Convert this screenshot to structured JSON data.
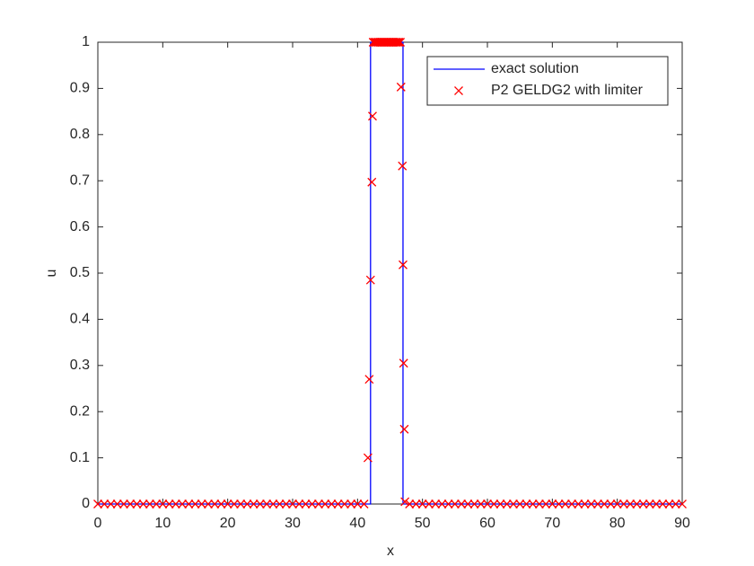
{
  "chart_data": {
    "type": "line",
    "xlabel": "x",
    "ylabel": "u",
    "xlim": [
      0,
      90
    ],
    "xticks": [
      0,
      10,
      20,
      30,
      40,
      50,
      60,
      70,
      80,
      90
    ],
    "ylim": [
      0,
      1
    ],
    "yticks": [
      0,
      0.1,
      0.2,
      0.3,
      0.4,
      0.5,
      0.6,
      0.7,
      0.8,
      0.9,
      1
    ],
    "legend": "upper right",
    "series": [
      {
        "name": "exact solution",
        "color": "#0000ff",
        "style": "line",
        "x": [
          0,
          42,
          42,
          47,
          47,
          90
        ],
        "values": [
          0,
          0,
          1,
          1,
          0,
          0
        ]
      },
      {
        "name": "P2 GELDG2 with limiter",
        "color": "#ff0000",
        "style": "marker",
        "x": [
          0,
          1,
          2,
          3,
          4,
          5,
          6,
          7,
          8,
          9,
          10,
          11,
          12,
          13,
          14,
          15,
          16,
          17,
          18,
          19,
          20,
          21,
          22,
          23,
          24,
          25,
          26,
          27,
          28,
          29,
          30,
          31,
          32,
          33,
          34,
          35,
          36,
          37,
          38,
          39,
          40,
          41,
          41.6,
          41.8,
          42.0,
          42.2,
          42.3,
          42.4,
          42.6,
          42.8,
          43,
          43.2,
          43.4,
          43.6,
          43.8,
          44,
          44.2,
          44.4,
          44.6,
          44.8,
          45,
          45.2,
          45.4,
          45.6,
          45.8,
          46,
          46.2,
          46.4,
          46.6,
          46.7,
          46.9,
          47.0,
          47.1,
          47.2,
          47.3,
          48,
          49,
          50,
          51,
          52,
          53,
          54,
          55,
          56,
          57,
          58,
          59,
          60,
          61,
          62,
          63,
          64,
          65,
          66,
          67,
          68,
          69,
          70,
          71,
          72,
          73,
          74,
          75,
          76,
          77,
          78,
          79,
          80,
          81,
          82,
          83,
          84,
          85,
          86,
          87,
          88,
          89,
          90
        ],
        "values": [
          0,
          0,
          0,
          0,
          0,
          0,
          0,
          0,
          0,
          0,
          0,
          0,
          0,
          0,
          0,
          0,
          0,
          0,
          0,
          0,
          0,
          0,
          0,
          0,
          0,
          0,
          0,
          0,
          0,
          0,
          0,
          0,
          0,
          0,
          0,
          0,
          0,
          0,
          0,
          0,
          0,
          0,
          0.1,
          0.27,
          0.485,
          0.697,
          0.84,
          1,
          1,
          1,
          1,
          1,
          1,
          1,
          1,
          1,
          1,
          1,
          1,
          1,
          1,
          1,
          1,
          1,
          1,
          1,
          1,
          1,
          1,
          0.903,
          0.732,
          0.518,
          0.305,
          0.162,
          0.005,
          0,
          0,
          0,
          0,
          0,
          0,
          0,
          0,
          0,
          0,
          0,
          0,
          0,
          0,
          0,
          0,
          0,
          0,
          0,
          0,
          0,
          0,
          0,
          0,
          0,
          0,
          0,
          0,
          0,
          0,
          0,
          0,
          0,
          0,
          0,
          0,
          0,
          0,
          0,
          0,
          0,
          0,
          0
        ]
      }
    ]
  }
}
